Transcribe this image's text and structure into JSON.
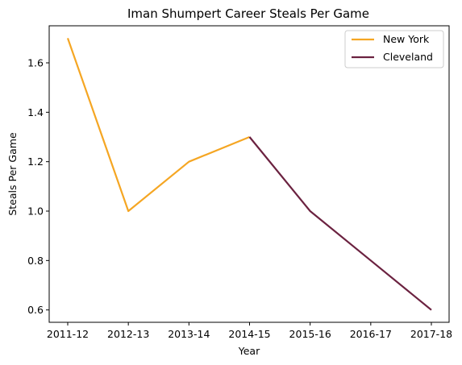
{
  "chart_data": {
    "type": "line",
    "title": "Iman Shumpert Career Steals Per Game",
    "xlabel": "Year",
    "ylabel": "Steals Per Game",
    "categories": [
      "2011-12",
      "2012-13",
      "2013-14",
      "2014-15",
      "2015-16",
      "2016-17",
      "2017-18"
    ],
    "yticks": [
      "0.6",
      "0.8",
      "1.0",
      "1.2",
      "1.4",
      "1.6"
    ],
    "ylim": [
      0.55,
      1.75
    ],
    "grid": false,
    "legend_position": "top-right",
    "series": [
      {
        "name": "New York",
        "color": "#F5A623",
        "points": [
          {
            "x": "2011-12",
            "y": 1.7
          },
          {
            "x": "2012-13",
            "y": 1.0
          },
          {
            "x": "2013-14",
            "y": 1.2
          },
          {
            "x": "2014-15",
            "y": 1.3
          }
        ]
      },
      {
        "name": "Cleveland",
        "color": "#6B2240",
        "points": [
          {
            "x": "2014-15",
            "y": 1.3
          },
          {
            "x": "2015-16",
            "y": 1.0
          },
          {
            "x": "2016-17",
            "y": 0.8
          },
          {
            "x": "2017-18",
            "y": 0.6
          }
        ]
      }
    ]
  }
}
